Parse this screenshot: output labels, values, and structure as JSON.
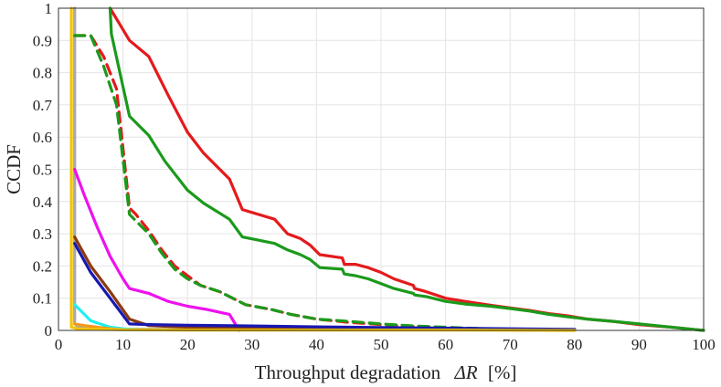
{
  "chart_data": {
    "type": "line",
    "title": "",
    "xlabel": "Throughput degradation",
    "xlabel_math": "ΔR",
    "xlabel_unit": "[%]",
    "ylabel": "CCDF",
    "xlim": [
      0,
      100
    ],
    "ylim": [
      0,
      1
    ],
    "grid": true,
    "xticks": [
      "0",
      "10",
      "20",
      "30",
      "40",
      "50",
      "60",
      "70",
      "80",
      "90",
      "100"
    ],
    "yticks": [
      "0",
      "0.1",
      "0.2",
      "0.3",
      "0.4",
      "0.5",
      "0.6",
      "0.7",
      "0.8",
      "0.9",
      "1"
    ],
    "series": [
      {
        "name": "gray",
        "color": "#a8a8a8",
        "dash": "solid",
        "x": [
          2.5,
          2.5,
          3,
          5,
          10,
          30,
          60,
          80
        ],
        "y": [
          1.0,
          0.02,
          0.012,
          0.006,
          0.004,
          0.003,
          0.002,
          0.002
        ]
      },
      {
        "name": "red-dashed",
        "color": "#e41a1c",
        "dash": "dashed",
        "x": [
          2.5,
          5,
          7,
          9,
          11,
          12,
          14,
          16,
          18,
          20,
          22,
          25,
          27,
          29,
          33,
          36,
          40,
          45,
          50,
          55,
          60,
          65,
          70,
          75,
          80
        ],
        "y": [
          0.915,
          0.915,
          0.85,
          0.75,
          0.38,
          0.36,
          0.31,
          0.25,
          0.2,
          0.17,
          0.14,
          0.12,
          0.1,
          0.08,
          0.065,
          0.05,
          0.035,
          0.025,
          0.018,
          0.012,
          0.008,
          0.005,
          0.003,
          0.002,
          0.001
        ]
      },
      {
        "name": "green-dashed",
        "color": "#1b9a1b",
        "dash": "dashed",
        "x": [
          2.5,
          5,
          7,
          9,
          11,
          12,
          14,
          16,
          18,
          20,
          22,
          25,
          27,
          29,
          33,
          36,
          40,
          45,
          50,
          55,
          60,
          65,
          70,
          75,
          80
        ],
        "y": [
          0.915,
          0.915,
          0.82,
          0.7,
          0.36,
          0.34,
          0.3,
          0.24,
          0.19,
          0.16,
          0.14,
          0.12,
          0.1,
          0.08,
          0.065,
          0.05,
          0.035,
          0.028,
          0.02,
          0.014,
          0.01,
          0.006,
          0.004,
          0.002,
          0.001
        ]
      },
      {
        "name": "red",
        "color": "#e41a1c",
        "dash": "solid",
        "x": [
          8,
          11,
          14,
          17,
          20,
          22.5,
          26.5,
          28.5,
          33.5,
          35.5,
          37.5,
          39,
          40.5,
          44,
          44.3,
          46,
          48,
          50,
          52,
          55,
          55.2,
          57,
          60,
          63,
          67,
          70,
          73,
          76,
          79,
          82,
          86,
          90,
          95,
          100
        ],
        "y": [
          1.0,
          0.9,
          0.85,
          0.73,
          0.615,
          0.55,
          0.47,
          0.375,
          0.345,
          0.3,
          0.285,
          0.265,
          0.235,
          0.225,
          0.205,
          0.205,
          0.195,
          0.18,
          0.16,
          0.14,
          0.13,
          0.12,
          0.1,
          0.09,
          0.078,
          0.07,
          0.062,
          0.052,
          0.045,
          0.035,
          0.028,
          0.018,
          0.01,
          0.0
        ]
      },
      {
        "name": "green",
        "color": "#1b9a1b",
        "dash": "solid",
        "x": [
          8,
          8.2,
          11,
          14,
          16.5,
          20,
          22.5,
          26.5,
          28.5,
          33.5,
          35.5,
          37.5,
          39,
          40.5,
          44,
          44.3,
          46,
          48,
          50,
          52,
          55,
          55.2,
          57,
          60,
          63,
          67,
          70,
          73,
          76,
          79,
          82,
          86,
          90,
          95,
          100
        ],
        "y": [
          1.0,
          0.92,
          0.665,
          0.605,
          0.525,
          0.435,
          0.395,
          0.345,
          0.29,
          0.27,
          0.25,
          0.235,
          0.22,
          0.195,
          0.19,
          0.175,
          0.17,
          0.16,
          0.145,
          0.13,
          0.115,
          0.11,
          0.105,
          0.09,
          0.082,
          0.075,
          0.068,
          0.06,
          0.05,
          0.042,
          0.035,
          0.028,
          0.02,
          0.01,
          0.0
        ]
      },
      {
        "name": "magenta",
        "color": "#ee11ee",
        "dash": "solid",
        "x": [
          2.5,
          4,
          6,
          8,
          10,
          11,
          14,
          17,
          20,
          23,
          26.5,
          28
        ],
        "y": [
          0.5,
          0.42,
          0.32,
          0.23,
          0.16,
          0.13,
          0.115,
          0.09,
          0.075,
          0.065,
          0.05,
          0.0
        ]
      },
      {
        "name": "brown",
        "color": "#8b3a10",
        "dash": "solid",
        "x": [
          2.5,
          5,
          8,
          11,
          14,
          20,
          30,
          40,
          50,
          60,
          70,
          80
        ],
        "y": [
          0.29,
          0.2,
          0.12,
          0.035,
          0.015,
          0.01,
          0.008,
          0.006,
          0.005,
          0.004,
          0.003,
          0.002
        ]
      },
      {
        "name": "blue",
        "color": "#1818b0",
        "dash": "solid",
        "x": [
          2.5,
          5,
          8,
          11,
          14,
          20,
          30,
          40,
          50,
          60,
          70,
          80
        ],
        "y": [
          0.27,
          0.18,
          0.1,
          0.02,
          0.018,
          0.016,
          0.014,
          0.011,
          0.009,
          0.007,
          0.005,
          0.003
        ]
      },
      {
        "name": "cyan",
        "color": "#22eeee",
        "dash": "solid",
        "x": [
          2.5,
          3,
          5,
          8,
          10,
          12
        ],
        "y": [
          0.08,
          0.07,
          0.03,
          0.01,
          0.005,
          0.002
        ]
      },
      {
        "name": "orange",
        "color": "#f29a1a",
        "dash": "solid",
        "x": [
          2.5,
          4,
          6,
          8,
          10
        ],
        "y": [
          0.02,
          0.015,
          0.01,
          0.005,
          0.002
        ]
      },
      {
        "name": "yellow",
        "color": "#f5c400",
        "dash": "solid",
        "x": [
          2.0,
          2.0,
          3,
          6,
          10,
          20,
          40,
          60,
          80
        ],
        "y": [
          1.0,
          0.01,
          0.005,
          0.003,
          0.002,
          0.001,
          0.001,
          0.001,
          0.0
        ]
      }
    ]
  }
}
